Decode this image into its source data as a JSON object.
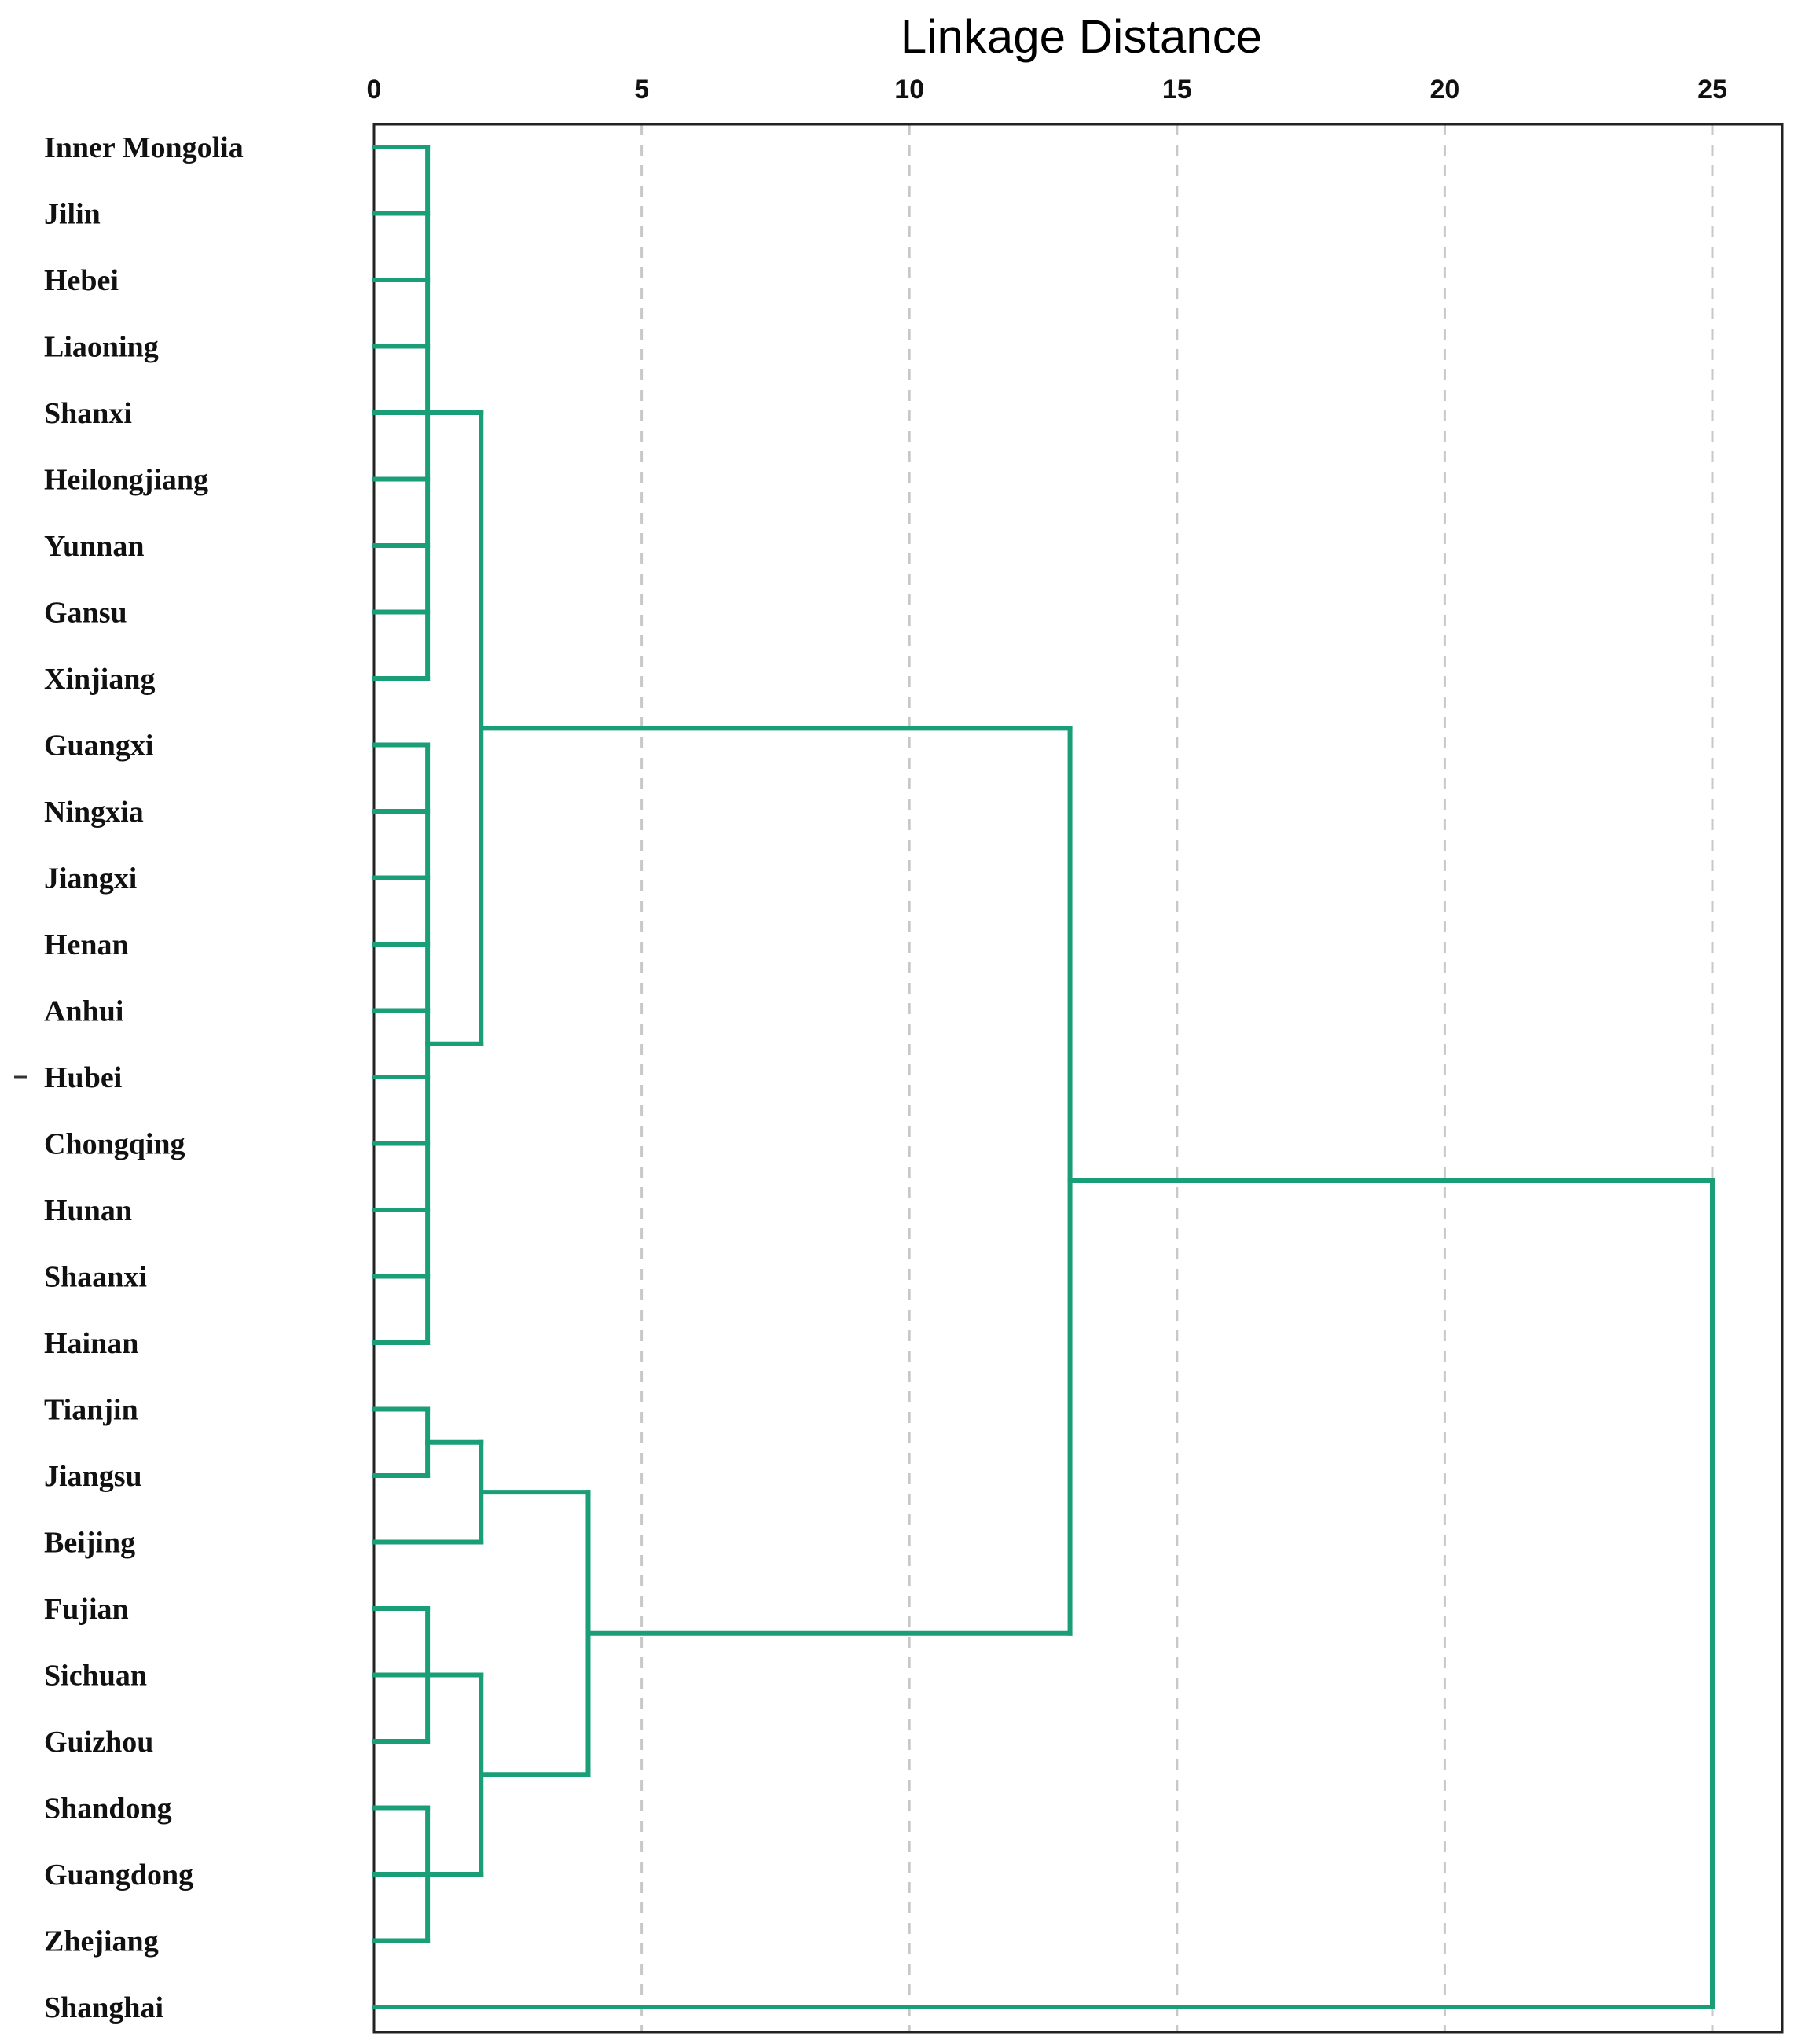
{
  "chart_data": {
    "type": "dendrogram",
    "xlabel": "Linkage Distance",
    "xlim": [
      0,
      26.3
    ],
    "xticks": [
      0,
      5,
      10,
      15,
      20,
      25
    ],
    "grid": "vertical dashed",
    "color": "#1a9e77",
    "leaves": [
      "Inner Mongolia",
      "Jilin",
      "Hebei",
      "Liaoning",
      "Shanxi",
      "Heilongjiang",
      "Yunnan",
      "Gansu",
      "Xinjiang",
      "Guangxi",
      "Ningxia",
      "Jiangxi",
      "Henan",
      "Anhui",
      "Hubei",
      "Chongqing",
      "Hunan",
      "Shaanxi",
      "Hainan",
      "Tianjin",
      "Jiangsu",
      "Beijing",
      "Fujian",
      "Sichuan",
      "Guizhou",
      "Shandong",
      "Guangdong",
      "Zhejiang",
      "Shanghai"
    ],
    "merges": [
      {
        "members": [
          0,
          1,
          2,
          3,
          4,
          5,
          6,
          7,
          8
        ],
        "height": 1
      },
      {
        "members": [
          9,
          10,
          11,
          12,
          13,
          14,
          15,
          16,
          17,
          18
        ],
        "height": 1
      },
      {
        "members": [
          19,
          20
        ],
        "height": 1
      },
      {
        "members": [
          22,
          23,
          24
        ],
        "height": 1
      },
      {
        "members": [
          25,
          26,
          27
        ],
        "height": 1
      },
      {
        "members": [
          "c0",
          "c1"
        ],
        "height": 2
      },
      {
        "members": [
          "c2",
          21
        ],
        "height": 2
      },
      {
        "members": [
          "c3",
          "c4"
        ],
        "height": 2
      },
      {
        "members": [
          "c6",
          "c7"
        ],
        "height": 4
      },
      {
        "members": [
          "c5",
          "c8"
        ],
        "height": 13
      },
      {
        "members": [
          "c9",
          28
        ],
        "height": 25
      }
    ]
  }
}
